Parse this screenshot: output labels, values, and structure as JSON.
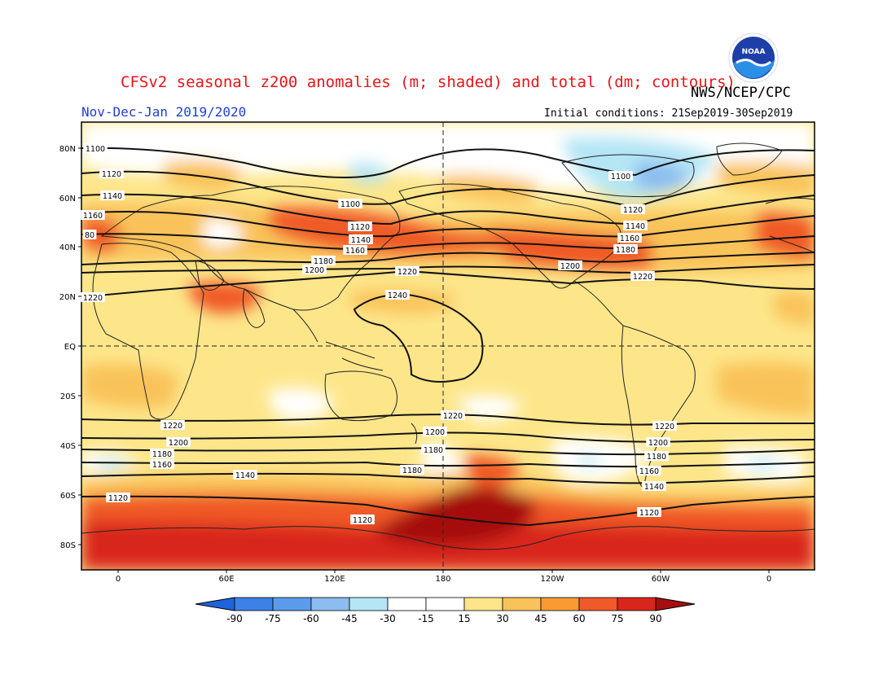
{
  "header": {
    "title": "CFSv2 seasonal z200 anomalies (m; shaded) and total (dm; contours)",
    "agency": "NWS/NCEP/CPC",
    "period": "Nov-Dec-Jan 2019/2020",
    "initial_conditions": "Initial conditions: 21Sep2019-30Sep2019"
  },
  "logo": {
    "icon": "noaa-logo-icon",
    "text": "NOAA"
  },
  "colors": {
    "neg90": "#1e64dc",
    "neg75": "#3c82e6",
    "neg60": "#5a9bec",
    "neg45": "#8cbcf0",
    "neg30": "#b4e6f5",
    "neutral": "#ffffff",
    "pos15": "#fde68a",
    "pos30": "#f9c35a",
    "pos45": "#f99a32",
    "pos60": "#f05a28",
    "pos75": "#d9261a",
    "pos90": "#a50f0f",
    "land": "#222222",
    "contour": "#111111"
  },
  "map": {
    "lat_labels": [
      "80N",
      "60N",
      "40N",
      "20N",
      "EQ",
      "20S",
      "40S",
      "60S",
      "80S"
    ],
    "lon_labels": [
      "0",
      "60E",
      "120E",
      "180",
      "120W",
      "60W",
      "0"
    ]
  },
  "contours": [
    {
      "value": "1100",
      "labels": [
        [
          117,
          182
        ],
        [
          430,
          250
        ],
        [
          762,
          216
        ]
      ]
    },
    {
      "value": "1120",
      "labels": [
        [
          137,
          213
        ],
        [
          442,
          278
        ],
        [
          777,
          257
        ],
        [
          145,
          611
        ],
        [
          445,
          638
        ],
        [
          797,
          629
        ]
      ]
    },
    {
      "value": "1140",
      "labels": [
        [
          138,
          240
        ],
        [
          443,
          294
        ],
        [
          780,
          277
        ],
        [
          301,
          583
        ],
        [
          803,
          597
        ]
      ]
    },
    {
      "value": "1160",
      "labels": [
        [
          114,
          264
        ],
        [
          436,
          307
        ],
        [
          773,
          292
        ],
        [
          199,
          570
        ],
        [
          797,
          578
        ]
      ]
    },
    {
      "value": "1180",
      "labels": [
        [
          397,
          320
        ],
        [
          768,
          306
        ],
        [
          199,
          557
        ],
        [
          532,
          552
        ],
        [
          506,
          577
        ],
        [
          806,
          560
        ]
      ]
    },
    {
      "value": "80",
      "labels": [
        [
          110,
          288
        ]
      ]
    },
    {
      "value": "1200",
      "labels": [
        [
          386,
          331
        ],
        [
          700,
          326
        ],
        [
          219,
          543
        ],
        [
          534,
          530
        ],
        [
          808,
          543
        ]
      ]
    },
    {
      "value": "1220",
      "labels": [
        [
          114,
          365
        ],
        [
          500,
          333
        ],
        [
          789,
          339
        ],
        [
          212,
          522
        ],
        [
          556,
          510
        ],
        [
          816,
          523
        ]
      ]
    },
    {
      "value": "1240",
      "labels": [
        [
          488,
          362
        ]
      ]
    }
  ],
  "colorbar": {
    "labels": [
      "-90",
      "-75",
      "-60",
      "-45",
      "-30",
      "-15",
      "15",
      "30",
      "45",
      "60",
      "75",
      "90"
    ]
  }
}
